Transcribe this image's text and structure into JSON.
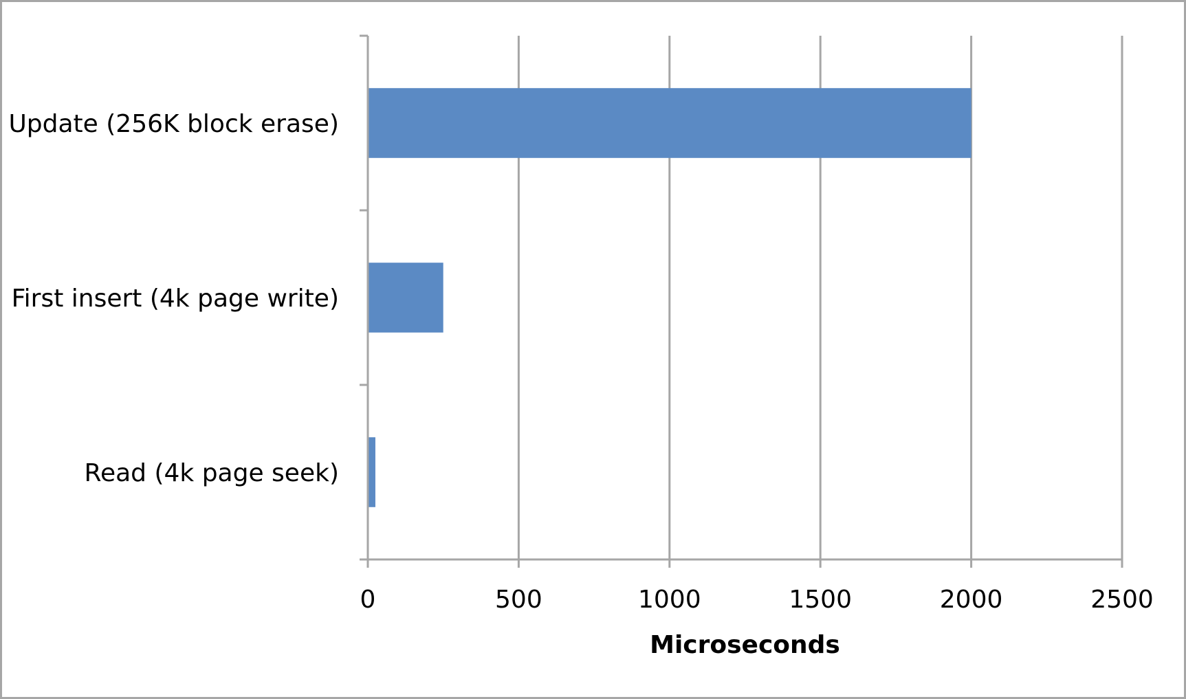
{
  "chart_data": {
    "type": "bar",
    "orientation": "horizontal",
    "categories": [
      "Update (256K block erase)",
      "First insert (4k page write)",
      "Read (4k page seek)"
    ],
    "values": [
      2000,
      250,
      25
    ],
    "title": "",
    "xlabel": "Microseconds",
    "ylabel": "",
    "xlim": [
      0,
      2500
    ],
    "x_ticks": [
      0,
      500,
      1000,
      1500,
      2000,
      2500
    ],
    "x_tick_labels": [
      "0",
      "500",
      "1000",
      "1500",
      "2000",
      "2500"
    ],
    "grid": "vertical",
    "legend": "none",
    "bar_color": "#5b8ac4"
  }
}
